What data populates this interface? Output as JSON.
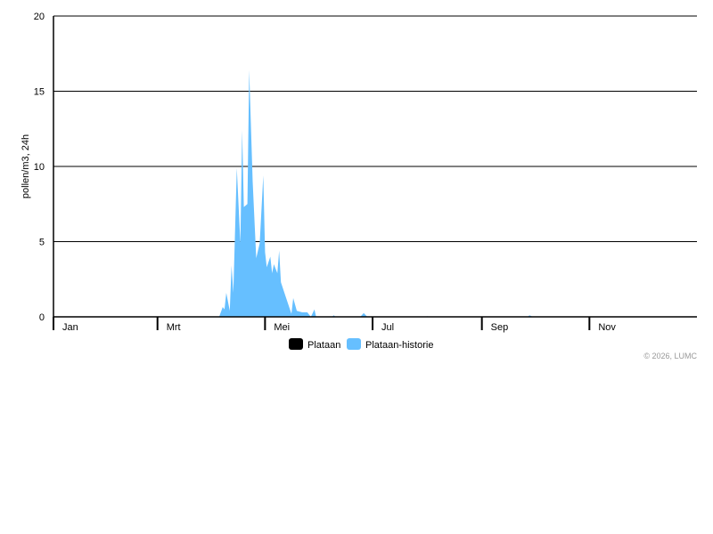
{
  "chart_data": {
    "type": "area",
    "title": "",
    "xlabel": "",
    "ylabel": "pollen/m3, 24h",
    "ylim": [
      0,
      20
    ],
    "yticks": [
      "0",
      "5",
      "10",
      "15",
      "20"
    ],
    "grid": true,
    "xticks": [
      "Jan",
      "Mrt",
      "Mei",
      "Jul",
      "Sep",
      "Nov"
    ],
    "legend_position": "bottom",
    "series": [
      {
        "name": "Plataan",
        "color": "#000000",
        "points": []
      },
      {
        "name": "Plataan-historie",
        "color": "#66bfff",
        "points": [
          [
            "04-04",
            0
          ],
          [
            "04-05",
            0
          ],
          [
            "04-07",
            0.65
          ],
          [
            "04-08",
            0.5
          ],
          [
            "04-09",
            1.6
          ],
          [
            "04-11",
            0.4
          ],
          [
            "04-12",
            3.4
          ],
          [
            "04-13",
            1.6
          ],
          [
            "04-15",
            9.9
          ],
          [
            "04-17",
            4.9
          ],
          [
            "04-18",
            12.4
          ],
          [
            "04-19",
            7.3
          ],
          [
            "04-21",
            7.5
          ],
          [
            "04-22",
            16.4
          ],
          [
            "04-24",
            9.0
          ],
          [
            "04-26",
            3.9
          ],
          [
            "04-28",
            4.9
          ],
          [
            "04-30",
            9.4
          ],
          [
            "05-01",
            4.3
          ],
          [
            "05-02",
            3.3
          ],
          [
            "05-04",
            4.0
          ],
          [
            "05-05",
            2.9
          ],
          [
            "05-06",
            3.5
          ],
          [
            "05-08",
            2.9
          ],
          [
            "05-09",
            4.4
          ],
          [
            "05-10",
            2.3
          ],
          [
            "05-12",
            1.6
          ],
          [
            "05-16",
            0.2
          ],
          [
            "05-17",
            1.25
          ],
          [
            "05-19",
            0.4
          ],
          [
            "05-22",
            0.3
          ],
          [
            "05-25",
            0.3
          ],
          [
            "05-27",
            0
          ],
          [
            "05-29",
            0.5
          ],
          [
            "05-30",
            0
          ],
          [
            "06-08",
            0
          ],
          [
            "06-09",
            0.1
          ],
          [
            "06-10",
            0
          ],
          [
            "06-24",
            0
          ],
          [
            "06-26",
            0.25
          ],
          [
            "06-28",
            0
          ],
          [
            "07-31",
            0
          ],
          [
            "08-01",
            0.05
          ],
          [
            "08-02",
            0
          ],
          [
            "09-27",
            0
          ],
          [
            "09-28",
            0.1
          ],
          [
            "09-30",
            0
          ]
        ]
      }
    ]
  },
  "credit": "© 2026, LUMC"
}
